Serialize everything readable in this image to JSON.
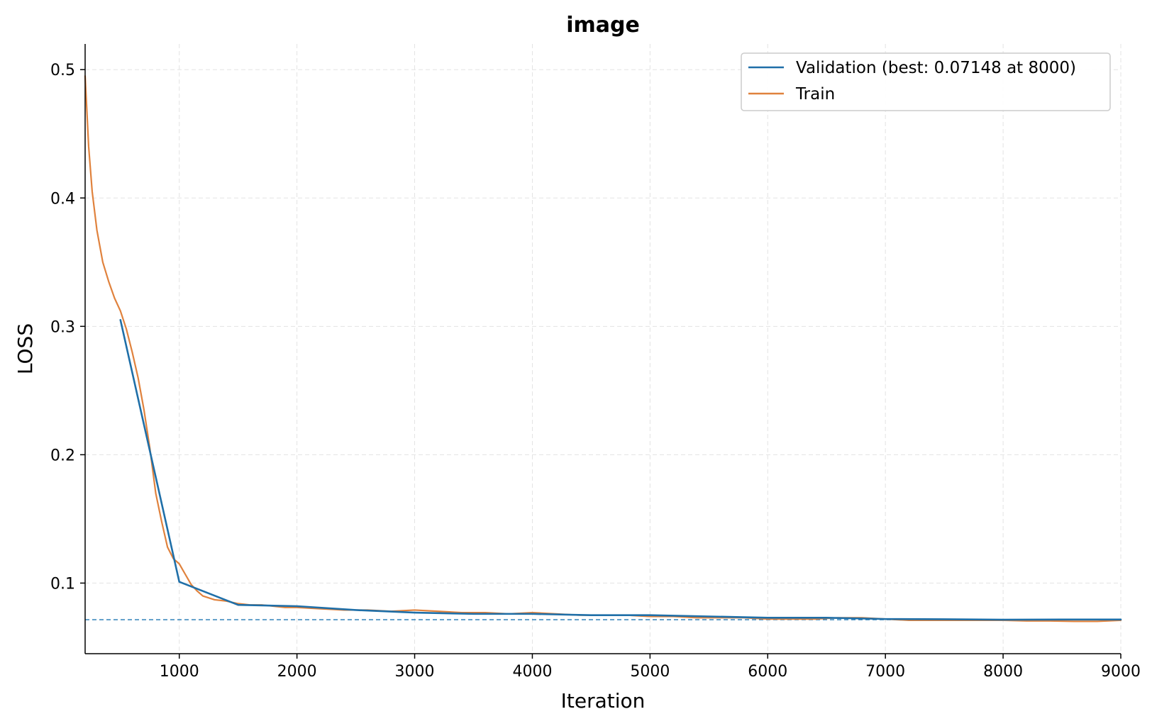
{
  "chart_data": {
    "type": "line",
    "title": "image",
    "xlabel": "Iteration",
    "ylabel": "LOSS",
    "xlim": [
      200,
      9000
    ],
    "ylim": [
      0.045,
      0.52
    ],
    "x_ticks": [
      1000,
      2000,
      3000,
      4000,
      5000,
      6000,
      7000,
      8000,
      9000
    ],
    "x_tick_labels": [
      "1000",
      "2000",
      "3000",
      "4000",
      "5000",
      "6000",
      "7000",
      "8000",
      "9000"
    ],
    "y_ticks": [
      0.1,
      0.2,
      0.3,
      0.4,
      0.5
    ],
    "y_tick_labels": [
      "0.1",
      "0.2",
      "0.3",
      "0.4",
      "0.5"
    ],
    "grid": true,
    "legend_position": "top-right",
    "best_line": {
      "y": 0.07148,
      "color": "#1f77b4",
      "style": "dashed"
    },
    "series": [
      {
        "name": "Validation (best: 0.07148 at 8000)",
        "color": "#1f6fa8",
        "x": [
          500,
          1000,
          1500,
          2000,
          2500,
          3000,
          3500,
          4000,
          4500,
          5000,
          5500,
          6000,
          6500,
          7000,
          7500,
          8000,
          8500,
          9000
        ],
        "y": [
          0.305,
          0.101,
          0.083,
          0.082,
          0.079,
          0.077,
          0.076,
          0.076,
          0.075,
          0.075,
          0.074,
          0.073,
          0.073,
          0.072,
          0.0718,
          0.07148,
          0.0716,
          0.0716
        ]
      },
      {
        "name": "Train",
        "color": "#e0823d",
        "x": [
          200,
          230,
          260,
          300,
          350,
          400,
          450,
          500,
          550,
          600,
          650,
          700,
          750,
          800,
          850,
          900,
          950,
          1000,
          1050,
          1100,
          1150,
          1200,
          1300,
          1400,
          1500,
          1600,
          1700,
          1800,
          1900,
          2000,
          2200,
          2400,
          2600,
          2800,
          3000,
          3200,
          3400,
          3600,
          3800,
          4000,
          4200,
          4400,
          4600,
          4800,
          5000,
          5200,
          5400,
          5600,
          5800,
          6000,
          6200,
          6400,
          6600,
          6800,
          7000,
          7200,
          7400,
          7600,
          7800,
          8000,
          8200,
          8400,
          8600,
          8800,
          9000
        ],
        "y": [
          0.495,
          0.44,
          0.405,
          0.375,
          0.35,
          0.335,
          0.322,
          0.312,
          0.298,
          0.28,
          0.26,
          0.235,
          0.205,
          0.17,
          0.148,
          0.128,
          0.119,
          0.115,
          0.107,
          0.099,
          0.094,
          0.09,
          0.087,
          0.086,
          0.084,
          0.083,
          0.083,
          0.082,
          0.081,
          0.081,
          0.08,
          0.079,
          0.079,
          0.078,
          0.079,
          0.078,
          0.077,
          0.077,
          0.076,
          0.077,
          0.076,
          0.075,
          0.075,
          0.075,
          0.074,
          0.074,
          0.073,
          0.073,
          0.073,
          0.072,
          0.072,
          0.072,
          0.073,
          0.073,
          0.072,
          0.071,
          0.071,
          0.071,
          0.071,
          0.071,
          0.0705,
          0.0705,
          0.0702,
          0.0702,
          0.071
        ]
      }
    ]
  }
}
